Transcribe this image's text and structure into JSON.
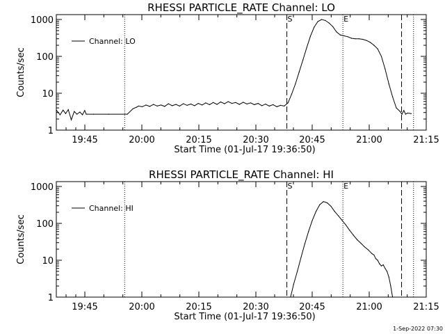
{
  "chart_data": [
    {
      "type": "line",
      "title": "RHESSI PARTICLE_RATE Channel: LO",
      "xlabel": "Start Time (01-Jul-17 19:36:50)",
      "ylabel": "Counts/sec",
      "x_unit": "minutes since 19:36:50",
      "xlim": [
        0,
        99
      ],
      "ylim": [
        1,
        1000
      ],
      "y_scale": "log",
      "x_ticks": [
        "19:45",
        "20:00",
        "20:15",
        "20:30",
        "20:45",
        "21:00",
        "21:15"
      ],
      "y_ticks": [
        "1",
        "10",
        "100",
        "1000"
      ],
      "legend": {
        "label": "Channel: LO",
        "position": "top-left"
      },
      "markers": [
        {
          "label": "S",
          "x": 61.7,
          "style": "dashed"
        },
        {
          "label": "E",
          "x": 76.7,
          "style": "dotted"
        }
      ],
      "vlines": [
        {
          "x": 18.3,
          "style": "dotted"
        },
        {
          "x": 92.4,
          "style": "dashed"
        },
        {
          "x": 95.6,
          "style": "dotted"
        }
      ],
      "series": [
        {
          "name": "Channel: LO",
          "x": [
            0,
            1,
            1.8,
            2.5,
            3.2,
            4,
            4.8,
            5.5,
            6.3,
            7,
            7.6,
            8,
            10,
            14,
            19,
            20.5,
            21.5,
            22,
            23,
            24,
            25,
            26,
            27,
            28,
            29,
            30,
            31,
            32,
            33,
            34,
            35,
            36,
            37,
            38,
            39,
            40,
            41,
            42,
            43,
            44,
            45,
            46,
            47,
            48,
            49,
            50,
            51,
            52,
            53,
            54,
            55,
            56,
            57,
            58,
            59,
            60,
            61,
            62,
            63,
            64,
            65,
            66,
            67,
            68,
            69,
            70,
            71,
            72,
            73,
            74,
            75,
            76,
            77,
            78,
            79,
            80,
            81,
            82,
            83,
            84,
            85,
            86,
            87,
            88,
            89,
            90,
            91,
            92,
            92.5,
            93,
            93.5,
            94,
            95
          ],
          "y": [
            3.5,
            2.6,
            3.5,
            2.8,
            3.6,
            1.9,
            3.2,
            2.7,
            3.1,
            2.6,
            3.4,
            2.7,
            2.7,
            2.7,
            2.7,
            3.8,
            4.2,
            4.5,
            4.3,
            4.8,
            4.4,
            5,
            4.5,
            4.8,
            4.4,
            5.2,
            4.6,
            5,
            4.5,
            5.2,
            4.7,
            5.1,
            4.6,
            5.3,
            4.8,
            5.5,
            4.9,
            5.6,
            5,
            5.8,
            5.2,
            5.9,
            5.3,
            5.6,
            5,
            5.7,
            5.1,
            5.5,
            4.9,
            5.3,
            4.6,
            5.1,
            4.5,
            4.9,
            4.3,
            4.7,
            4.5,
            5.5,
            9.5,
            18,
            38,
            80,
            170,
            350,
            620,
            880,
            1000,
            940,
            800,
            640,
            460,
            380,
            360,
            340,
            310,
            300,
            300,
            290,
            270,
            240,
            200,
            160,
            100,
            45,
            18,
            8,
            4,
            3.2,
            2.7,
            3.4,
            2.7,
            2.9,
            2.8
          ]
        }
      ]
    },
    {
      "type": "line",
      "title": "RHESSI PARTICLE_RATE Channel: HI",
      "xlabel": "Start Time (01-Jul-17 19:36:50)",
      "ylabel": "Counts/sec",
      "x_unit": "minutes since 19:36:50",
      "xlim": [
        0,
        99
      ],
      "ylim": [
        1,
        1000
      ],
      "y_scale": "log",
      "x_ticks": [
        "19:45",
        "20:00",
        "20:15",
        "20:30",
        "20:45",
        "21:00",
        "21:15"
      ],
      "y_ticks": [
        "1",
        "10",
        "100",
        "1000"
      ],
      "legend": {
        "label": "Channel: HI",
        "position": "top-left"
      },
      "markers": [
        {
          "label": "S",
          "x": 61.7,
          "style": "dashed"
        },
        {
          "label": "E",
          "x": 76.7,
          "style": "dotted"
        }
      ],
      "vlines": [
        {
          "x": 18.3,
          "style": "dotted"
        },
        {
          "x": 92.4,
          "style": "dashed"
        },
        {
          "x": 95.6,
          "style": "dotted"
        }
      ],
      "series": [
        {
          "name": "Channel: HI",
          "x": [
            62.7,
            63.5,
            64.5,
            65.5,
            66.5,
            67.5,
            68.5,
            69.5,
            70.5,
            71.5,
            72.5,
            73.5,
            74.5,
            75.5,
            76.5,
            77.5,
            78.5,
            79.5,
            80.5,
            81.5,
            82.5,
            83.5,
            84.5,
            85,
            85.5,
            86,
            86.5,
            87,
            87.5,
            88,
            88.5,
            89,
            89.5,
            90
          ],
          "y": [
            1,
            2.2,
            5,
            12,
            28,
            60,
            120,
            210,
            320,
            390,
            360,
            290,
            210,
            160,
            120,
            90,
            65,
            48,
            36,
            29,
            23,
            19,
            15,
            14,
            11,
            10,
            8,
            7,
            7.5,
            6,
            5,
            3.5,
            2,
            1
          ]
        }
      ]
    }
  ],
  "stamp": "1-Sep-2022 07:30"
}
